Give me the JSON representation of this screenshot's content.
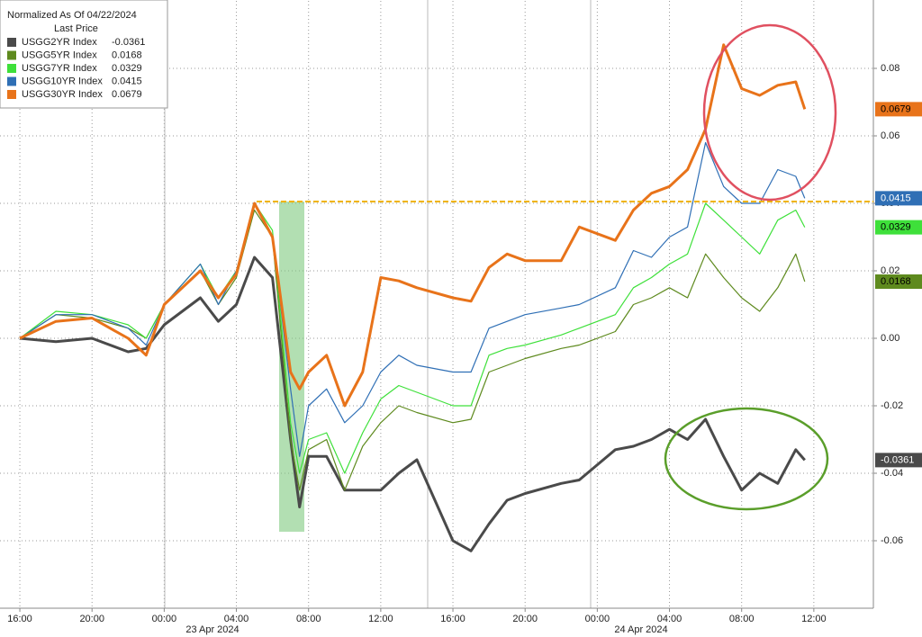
{
  "chart_data": {
    "type": "line",
    "title": "Normalized As Of 04/22/2024",
    "subtitle": "Last Price",
    "date_labels": [
      "23 Apr 2024",
      "24 Apr 2024"
    ],
    "x": [
      0,
      2,
      4,
      6,
      7,
      8,
      10,
      11,
      12,
      13,
      14,
      15,
      15.5,
      16,
      17,
      18,
      19,
      20,
      21,
      22,
      24,
      25,
      26,
      27,
      28,
      30,
      31,
      33,
      34,
      35,
      36,
      37,
      38,
      39,
      40,
      41,
      42,
      43,
      43.5
    ],
    "xlim": [
      -1.1,
      47.3
    ],
    "xticks": [
      {
        "value": 0,
        "label": "16:00"
      },
      {
        "value": 4,
        "label": "20:00"
      },
      {
        "value": 8,
        "label": "00:00"
      },
      {
        "value": 12,
        "label": "04:00"
      },
      {
        "value": 16,
        "label": "08:00"
      },
      {
        "value": 20,
        "label": "12:00"
      },
      {
        "value": 24,
        "label": "16:00"
      },
      {
        "value": 28,
        "label": "20:00"
      },
      {
        "value": 32,
        "label": "00:00"
      },
      {
        "value": 36,
        "label": "04:00"
      },
      {
        "value": 40,
        "label": "08:00"
      },
      {
        "value": 44,
        "label": "12:00"
      }
    ],
    "ylim": [
      -0.08,
      0.1
    ],
    "yticks": [
      -0.06,
      -0.04,
      -0.02,
      {
        "value": 0,
        "label": "0.00"
      },
      0.02,
      0.04,
      0.06,
      0.08
    ],
    "grid": true,
    "series": [
      {
        "name": "USGG2YR Index",
        "color": "#4a4a4a",
        "values": [
          0,
          -0.001,
          0,
          -0.004,
          -0.003,
          0.004,
          0.012,
          0.005,
          0.01,
          0.024,
          0.018,
          -0.03,
          -0.05,
          -0.035,
          -0.035,
          -0.045,
          -0.045,
          -0.045,
          -0.04,
          -0.036,
          -0.06,
          -0.063,
          -0.055,
          -0.048,
          -0.046,
          -0.043,
          -0.042,
          -0.033,
          -0.032,
          -0.03,
          -0.027,
          -0.03,
          -0.024,
          -0.035,
          -0.045,
          -0.04,
          -0.043,
          -0.033,
          -0.0361
        ]
      },
      {
        "name": "USGG5YR Index",
        "color": "#5e8a1e",
        "values": [
          0,
          0.007,
          0.006,
          0.003,
          0,
          0.01,
          0.02,
          0.01,
          0.018,
          0.038,
          0.03,
          -0.03,
          -0.045,
          -0.033,
          -0.03,
          -0.045,
          -0.032,
          -0.025,
          -0.02,
          -0.022,
          -0.025,
          -0.024,
          -0.01,
          -0.008,
          -0.006,
          -0.003,
          -0.002,
          0.002,
          0.01,
          0.012,
          0.015,
          0.012,
          0.025,
          0.018,
          0.012,
          0.008,
          0.015,
          0.025,
          0.0168
        ]
      },
      {
        "name": "USGG7YR Index",
        "color": "#3ee03a",
        "values": [
          0,
          0.008,
          0.007,
          0.004,
          0,
          0.01,
          0.022,
          0.012,
          0.02,
          0.04,
          0.032,
          -0.025,
          -0.04,
          -0.03,
          -0.028,
          -0.04,
          -0.028,
          -0.018,
          -0.014,
          -0.016,
          -0.02,
          -0.02,
          -0.005,
          -0.003,
          -0.002,
          0.001,
          0.003,
          0.007,
          0.015,
          0.018,
          0.022,
          0.025,
          0.04,
          0.035,
          0.03,
          0.025,
          0.035,
          0.038,
          0.0329
        ]
      },
      {
        "name": "USGG10YR Index",
        "color": "#2f6fb5",
        "values": [
          0,
          0.007,
          0.007,
          0.003,
          -0.002,
          0.01,
          0.022,
          0.01,
          0.02,
          0.04,
          0.03,
          -0.015,
          -0.035,
          -0.02,
          -0.015,
          -0.025,
          -0.02,
          -0.01,
          -0.005,
          -0.008,
          -0.01,
          -0.01,
          0.003,
          0.005,
          0.007,
          0.009,
          0.01,
          0.015,
          0.026,
          0.024,
          0.03,
          0.033,
          0.058,
          0.045,
          0.04,
          0.04,
          0.05,
          0.048,
          0.0415
        ]
      },
      {
        "name": "USGG30YR Index",
        "color": "#e8731a",
        "values": [
          0,
          0.005,
          0.006,
          0,
          -0.005,
          0.01,
          0.02,
          0.012,
          0.019,
          0.04,
          0.03,
          -0.01,
          -0.015,
          -0.01,
          -0.005,
          -0.02,
          -0.01,
          0.018,
          0.017,
          0.015,
          0.012,
          0.011,
          0.021,
          0.025,
          0.023,
          0.023,
          0.033,
          0.029,
          0.038,
          0.043,
          0.045,
          0.05,
          0.062,
          0.087,
          0.074,
          0.072,
          0.075,
          0.076,
          0.0679
        ]
      }
    ]
  }
}
